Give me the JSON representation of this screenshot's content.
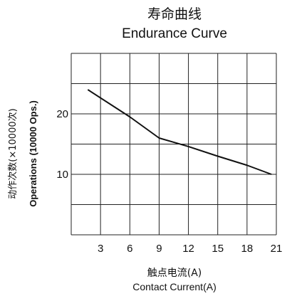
{
  "chart_data": {
    "type": "line",
    "title_cn": "寿命曲线",
    "title_en": "Endurance Curve",
    "xlabel_cn": "触点电流(A)",
    "xlabel_en": "Contact Current(A)",
    "ylabel_cn": "动作次数(×10000次)",
    "ylabel_en": "Operations  (10000 Ops.)",
    "xlim": [
      0,
      21
    ],
    "ylim": [
      0,
      30
    ],
    "xticks": [
      3,
      6,
      9,
      12,
      15,
      18,
      21
    ],
    "xtick_labels": [
      "3",
      "6",
      "9",
      "12",
      "15",
      "18",
      "21"
    ],
    "yticks": [
      10,
      20
    ],
    "ytick_labels": [
      "10",
      "20"
    ],
    "grid": true,
    "series": [
      {
        "x": [
          1.7,
          6,
          9,
          12,
          15,
          18,
          20.5
        ],
        "y": [
          24,
          19.5,
          16,
          14.6,
          13,
          11.5,
          10
        ],
        "color": "#111111"
      }
    ]
  }
}
